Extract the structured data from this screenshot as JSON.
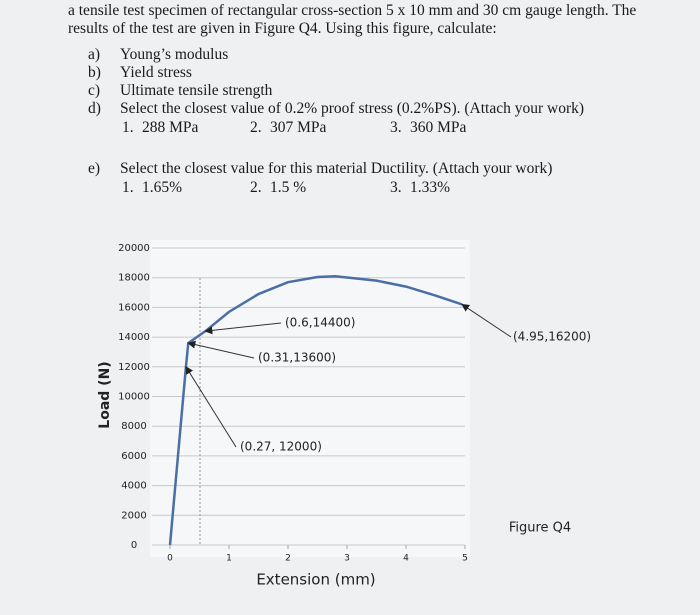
{
  "question": {
    "intro": [
      "a tensile test specimen of rectangular cross-section 5 x 10 mm and 30 cm gauge length. The",
      "results of the test are given in Figure Q4. Using this figure, calculate:"
    ],
    "items": [
      {
        "label": "a)",
        "text": "Young’s modulus"
      },
      {
        "label": "b)",
        "text": "Yield stress"
      },
      {
        "label": "c)",
        "text": "Ultimate tensile strength"
      },
      {
        "label": "d)",
        "text": "Select the closest value of 0.2% proof stress (0.2%PS). (Attach your work)",
        "options": [
          {
            "label": "1.",
            "text": "288 MPa"
          },
          {
            "label": "2.",
            "text": "307 MPa"
          },
          {
            "label": "3.",
            "text": "360 MPa"
          }
        ]
      },
      {
        "label": "e)",
        "text": "Select the closest value for this material Ductility. (Attach your work)",
        "options": [
          {
            "label": "1.",
            "text": "1.65%"
          },
          {
            "label": "2.",
            "text": "1.5 %"
          },
          {
            "label": "3.",
            "text": "1.33%"
          }
        ]
      }
    ]
  },
  "chart_data": {
    "type": "line",
    "caption": "Figure Q4",
    "x_label": "Extension (mm)",
    "y_label": "Load (N)",
    "series": [
      {
        "color": "#4a6fa5",
        "x": [
          0,
          0.27,
          0.31,
          0.6,
          1,
          1.5,
          2,
          2.5,
          2.8,
          3.5,
          4,
          4.5,
          4.95
        ],
        "values": [
          0,
          12000,
          13600,
          14400,
          15700,
          16900,
          17700,
          18050,
          18100,
          17800,
          17400,
          16800,
          16200
        ]
      }
    ],
    "annotations": [
      {
        "text": "(0.6,14400)",
        "x": 0.6,
        "y": 14400
      },
      {
        "text": "(0.31,13600)",
        "x": 0.31,
        "y": 13600
      },
      {
        "text": "(0.27, 12000)",
        "x": 0.27,
        "y": 12000
      },
      {
        "text": "(4.95,16200)",
        "x": 4.95,
        "y": 16200
      }
    ],
    "xlim": [
      0,
      5
    ],
    "xticks": [
      0,
      1,
      2,
      3,
      4,
      5
    ],
    "ylim": [
      0,
      20000
    ],
    "yticks": [
      0,
      2000,
      4000,
      6000,
      8000,
      10000,
      12000,
      14000,
      16000,
      18000,
      20000
    ],
    "grid": true
  }
}
